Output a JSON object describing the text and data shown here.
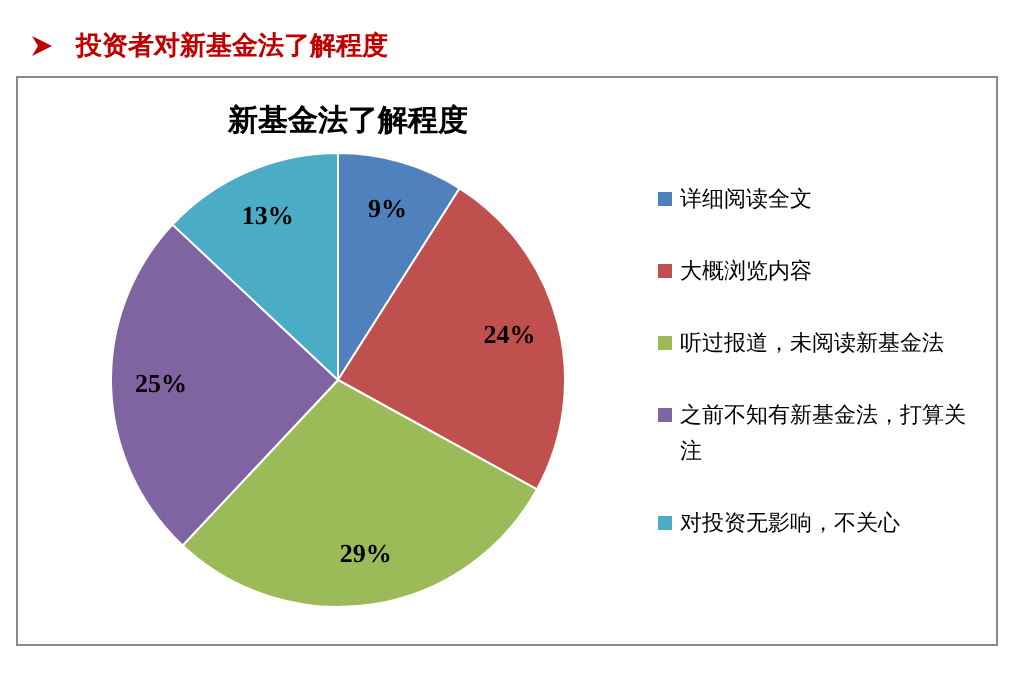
{
  "chart_data": {
    "type": "pie",
    "title": "新基金法了解程度",
    "subtitle": "投资者对新基金法了解程度",
    "categories": [
      "详细阅读全文",
      "大概浏览内容",
      "听过报道，未阅读新基金法",
      "之前不知有新基金法，打算关注",
      "对投资无影响，不关心"
    ],
    "values": [
      9,
      24,
      29,
      25,
      13
    ],
    "colors": [
      "#4f81bd",
      "#c0504d",
      "#9bbb59",
      "#8064a2",
      "#4bacc6"
    ],
    "value_labels": [
      "9%",
      "24%",
      "29%",
      "25%",
      "13%"
    ],
    "legend": "right"
  }
}
